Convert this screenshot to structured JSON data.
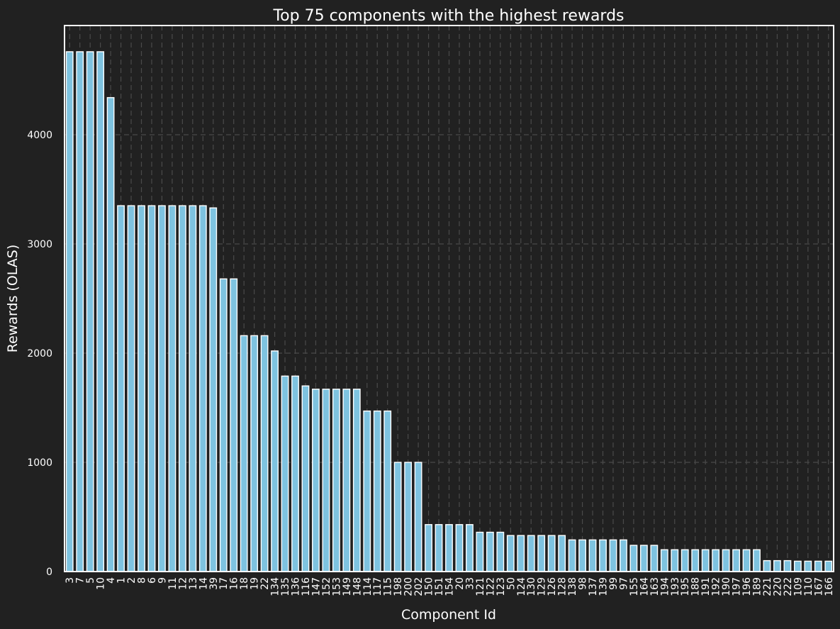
{
  "chart_data": {
    "type": "bar",
    "title": "Top 75 components with the highest rewards",
    "xlabel": "Component Id",
    "ylabel": "Rewards (OLAS)",
    "ylim": [
      0,
      5000
    ],
    "yticks": [
      0,
      1000,
      2000,
      3000,
      4000
    ],
    "grid": true,
    "categories": [
      "3",
      "7",
      "5",
      "10",
      "4",
      "1",
      "2",
      "8",
      "6",
      "9",
      "11",
      "12",
      "13",
      "14",
      "39",
      "17",
      "16",
      "18",
      "19",
      "22",
      "134",
      "135",
      "136",
      "116",
      "147",
      "152",
      "153",
      "149",
      "148",
      "114",
      "117",
      "115",
      "198",
      "200",
      "202",
      "150",
      "151",
      "154",
      "20",
      "33",
      "121",
      "122",
      "123",
      "50",
      "124",
      "130",
      "129",
      "126",
      "128",
      "138",
      "98",
      "137",
      "139",
      "99",
      "97",
      "155",
      "164",
      "163",
      "194",
      "193",
      "195",
      "188",
      "191",
      "192",
      "190",
      "197",
      "196",
      "189",
      "221",
      "220",
      "222",
      "109",
      "110",
      "167",
      "166"
    ],
    "values": [
      4760,
      4760,
      4760,
      4760,
      4340,
      3350,
      3350,
      3350,
      3350,
      3350,
      3350,
      3350,
      3350,
      3350,
      3330,
      2680,
      2680,
      2160,
      2160,
      2160,
      2020,
      1790,
      1790,
      1700,
      1670,
      1670,
      1670,
      1670,
      1670,
      1470,
      1470,
      1470,
      1000,
      1000,
      1000,
      430,
      430,
      430,
      430,
      430,
      360,
      360,
      360,
      330,
      330,
      330,
      330,
      330,
      330,
      290,
      290,
      290,
      290,
      290,
      290,
      240,
      240,
      240,
      200,
      200,
      200,
      200,
      200,
      200,
      200,
      200,
      200,
      200,
      100,
      100,
      100,
      95,
      95,
      95,
      95
    ],
    "bar_color": "#7ec3e0",
    "background": "#212121"
  }
}
